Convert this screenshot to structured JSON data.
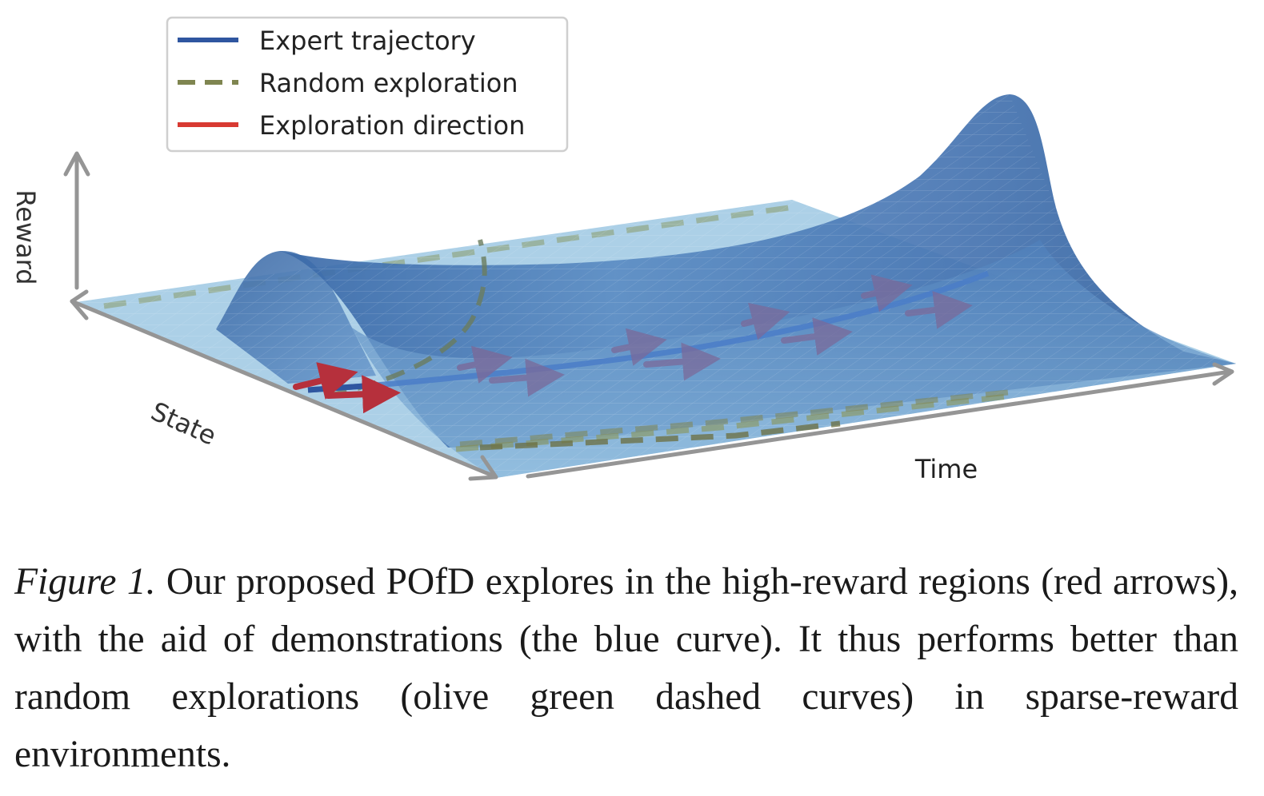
{
  "figure": {
    "legend": [
      {
        "label": "Expert trajectory",
        "color": "#2f56a0",
        "style": "solid"
      },
      {
        "label": "Random exploration",
        "color": "#7f8550",
        "style": "dashed"
      },
      {
        "label": "Exploration direction",
        "color": "#d83a32",
        "style": "solid"
      }
    ],
    "axes": {
      "vertical": "Reward",
      "depth": "State",
      "horizontal": "Time"
    },
    "colors": {
      "surface_light": "#a8cde6",
      "surface_dark": "#2f5f9c",
      "axis": "#959595",
      "arrow_near": "#b6303c",
      "arrow_far": "#7a6a9a"
    }
  },
  "caption": {
    "label": "Figure 1.",
    "text": "Our proposed POfD explores in the high-reward regions (red arrows), with the aid of demonstrations (the blue curve). It thus performs better than random explorations (olive green dashed curves) in sparse-reward environments."
  }
}
